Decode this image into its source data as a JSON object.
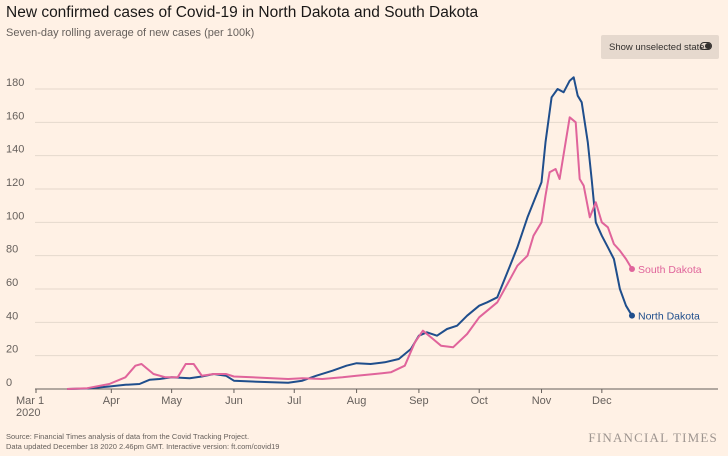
{
  "header": {
    "title": "New confirmed cases of Covid-19 in North Dakota and South Dakota",
    "subtitle": "Seven-day rolling average of new cases (per 100k)"
  },
  "toggle": {
    "label": "Show unselected states",
    "icon": "toggle-switch-icon",
    "on": true
  },
  "footer": {
    "source_line1": "Source: Financial Times analysis of data from the Covid Tracking Project.",
    "source_line2": "Data updated December 18 2020 2.46pm GMT. Interactive version: ft.com/covid19",
    "brand": "FINANCIAL TIMES"
  },
  "colors": {
    "background": "#fff1e5",
    "north_dakota": "#1f4e8c",
    "south_dakota": "#e0649b",
    "grid": "#e5d8cc",
    "axis": "#66605c"
  },
  "chart_data": {
    "type": "line",
    "title": "New confirmed cases of Covid-19 in North Dakota and South Dakota",
    "ylabel": "",
    "xlabel": "",
    "ylim": [
      0,
      190
    ],
    "yticks": [
      0,
      20,
      40,
      60,
      80,
      100,
      120,
      140,
      160,
      180
    ],
    "grid": "horizontal",
    "xlim": [
      "2020-03-01",
      "2020-12-17"
    ],
    "xticks": [
      {
        "date": "2020-03-01",
        "label": "Mar 1",
        "sublabel": "2020"
      },
      {
        "date": "2020-04-01",
        "label": "Apr"
      },
      {
        "date": "2020-05-01",
        "label": "May"
      },
      {
        "date": "2020-06-01",
        "label": "Jun"
      },
      {
        "date": "2020-07-01",
        "label": "Jul"
      },
      {
        "date": "2020-08-01",
        "label": "Aug"
      },
      {
        "date": "2020-09-01",
        "label": "Sep"
      },
      {
        "date": "2020-10-01",
        "label": "Oct"
      },
      {
        "date": "2020-11-01",
        "label": "Nov"
      },
      {
        "date": "2020-12-01",
        "label": "Dec"
      }
    ],
    "series": [
      {
        "name": "North Dakota",
        "color": "#1f4e8c",
        "points": [
          [
            "2020-03-10",
            0
          ],
          [
            "2020-03-20",
            0.3
          ],
          [
            "2020-03-31",
            1.5
          ],
          [
            "2020-04-08",
            2.5
          ],
          [
            "2020-04-15",
            3
          ],
          [
            "2020-04-20",
            5.5
          ],
          [
            "2020-04-25",
            6
          ],
          [
            "2020-05-01",
            7
          ],
          [
            "2020-05-10",
            6.5
          ],
          [
            "2020-05-16",
            7.5
          ],
          [
            "2020-05-22",
            9
          ],
          [
            "2020-05-28",
            8
          ],
          [
            "2020-06-01",
            5
          ],
          [
            "2020-06-10",
            4.5
          ],
          [
            "2020-06-20",
            4
          ],
          [
            "2020-06-28",
            3.8
          ],
          [
            "2020-07-05",
            5
          ],
          [
            "2020-07-12",
            8
          ],
          [
            "2020-07-20",
            11
          ],
          [
            "2020-07-27",
            14
          ],
          [
            "2020-08-01",
            15.5
          ],
          [
            "2020-08-08",
            15
          ],
          [
            "2020-08-15",
            16
          ],
          [
            "2020-08-22",
            18
          ],
          [
            "2020-08-28",
            24
          ],
          [
            "2020-09-01",
            32
          ],
          [
            "2020-09-05",
            34
          ],
          [
            "2020-09-10",
            32
          ],
          [
            "2020-09-15",
            36
          ],
          [
            "2020-09-20",
            38
          ],
          [
            "2020-09-25",
            44
          ],
          [
            "2020-10-01",
            50
          ],
          [
            "2020-10-05",
            52
          ],
          [
            "2020-10-10",
            55
          ],
          [
            "2020-10-15",
            70
          ],
          [
            "2020-10-20",
            85
          ],
          [
            "2020-10-25",
            103
          ],
          [
            "2020-10-28",
            112
          ],
          [
            "2020-11-01",
            124
          ],
          [
            "2020-11-03",
            148
          ],
          [
            "2020-11-06",
            175
          ],
          [
            "2020-11-09",
            180
          ],
          [
            "2020-11-12",
            178
          ],
          [
            "2020-11-15",
            185
          ],
          [
            "2020-11-17",
            187
          ],
          [
            "2020-11-19",
            176
          ],
          [
            "2020-11-21",
            172
          ],
          [
            "2020-11-24",
            148
          ],
          [
            "2020-11-26",
            125
          ],
          [
            "2020-11-28",
            100
          ],
          [
            "2020-12-01",
            92
          ],
          [
            "2020-12-04",
            85
          ],
          [
            "2020-12-07",
            78
          ],
          [
            "2020-12-10",
            60
          ],
          [
            "2020-12-13",
            50
          ],
          [
            "2020-12-16",
            44
          ]
        ],
        "end_label": "North Dakota"
      },
      {
        "name": "South Dakota",
        "color": "#e0649b",
        "points": [
          [
            "2020-03-10",
            0
          ],
          [
            "2020-03-20",
            0.5
          ],
          [
            "2020-03-31",
            3
          ],
          [
            "2020-04-08",
            7
          ],
          [
            "2020-04-13",
            14
          ],
          [
            "2020-04-16",
            15
          ],
          [
            "2020-04-22",
            9
          ],
          [
            "2020-04-28",
            7
          ],
          [
            "2020-05-04",
            7
          ],
          [
            "2020-05-08",
            15
          ],
          [
            "2020-05-12",
            15
          ],
          [
            "2020-05-16",
            8
          ],
          [
            "2020-05-22",
            9
          ],
          [
            "2020-05-28",
            9
          ],
          [
            "2020-06-01",
            7.5
          ],
          [
            "2020-06-10",
            7
          ],
          [
            "2020-06-20",
            6.5
          ],
          [
            "2020-06-28",
            6
          ],
          [
            "2020-07-05",
            6.5
          ],
          [
            "2020-07-15",
            6
          ],
          [
            "2020-07-25",
            7
          ],
          [
            "2020-08-01",
            8
          ],
          [
            "2020-08-10",
            9
          ],
          [
            "2020-08-18",
            10
          ],
          [
            "2020-08-25",
            14
          ],
          [
            "2020-08-30",
            28
          ],
          [
            "2020-09-03",
            35
          ],
          [
            "2020-09-08",
            30
          ],
          [
            "2020-09-12",
            26
          ],
          [
            "2020-09-18",
            25
          ],
          [
            "2020-09-25",
            33
          ],
          [
            "2020-10-01",
            43
          ],
          [
            "2020-10-05",
            47
          ],
          [
            "2020-10-10",
            52
          ],
          [
            "2020-10-15",
            63
          ],
          [
            "2020-10-20",
            74
          ],
          [
            "2020-10-25",
            80
          ],
          [
            "2020-10-28",
            92
          ],
          [
            "2020-11-01",
            100
          ],
          [
            "2020-11-03",
            116
          ],
          [
            "2020-11-05",
            130
          ],
          [
            "2020-11-08",
            132
          ],
          [
            "2020-11-10",
            126
          ],
          [
            "2020-11-13",
            148
          ],
          [
            "2020-11-15",
            163
          ],
          [
            "2020-11-18",
            160
          ],
          [
            "2020-11-20",
            126
          ],
          [
            "2020-11-22",
            122
          ],
          [
            "2020-11-25",
            103
          ],
          [
            "2020-11-28",
            112
          ],
          [
            "2020-12-01",
            100
          ],
          [
            "2020-12-04",
            97
          ],
          [
            "2020-12-07",
            87
          ],
          [
            "2020-12-10",
            83
          ],
          [
            "2020-12-13",
            78
          ],
          [
            "2020-12-16",
            72
          ]
        ],
        "end_label": "South Dakota"
      }
    ]
  }
}
